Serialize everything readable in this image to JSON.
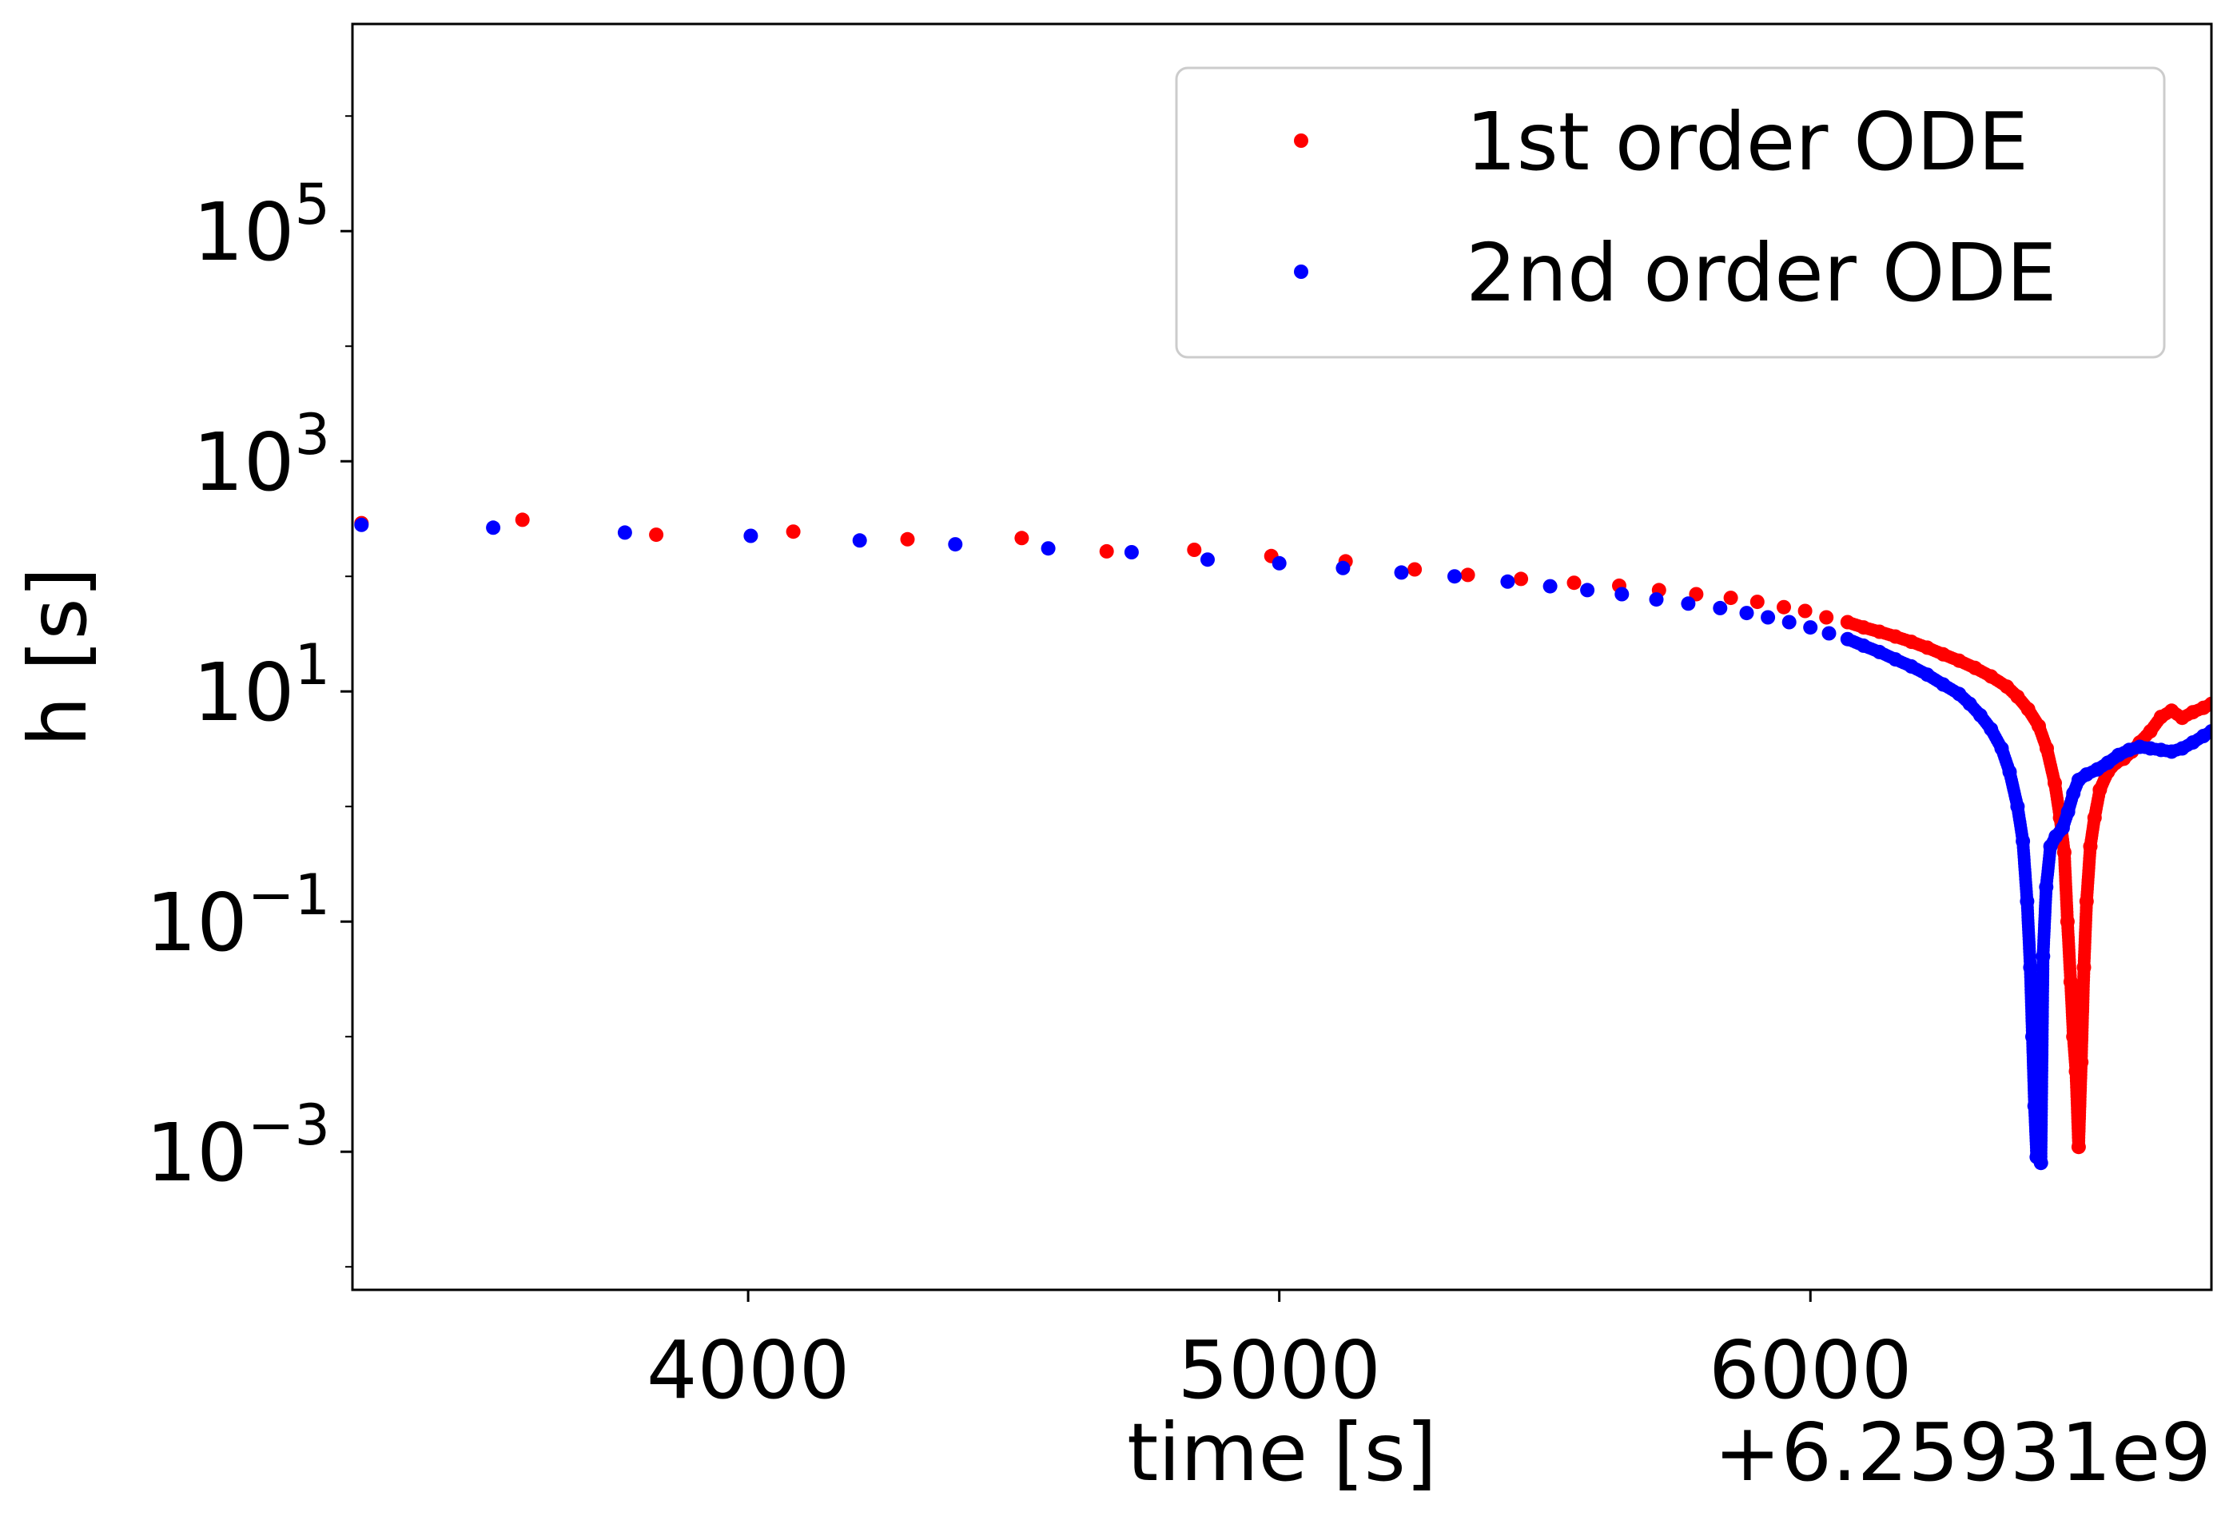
{
  "chart_data": {
    "type": "scatter",
    "title": "",
    "xlabel": "time [s]",
    "ylabel": "h [s]",
    "x_offset_label": "+6.25931e9",
    "x_offset": 6259310000,
    "xlim": [
      3255,
      6755
    ],
    "ylim_log10": [
      -4.2,
      6.8
    ],
    "y_scale": "log",
    "grid": false,
    "legend_position": "top-right",
    "x_ticks": [
      {
        "value": 4000,
        "label": "4000"
      },
      {
        "value": 5000,
        "label": "5000"
      },
      {
        "value": 6000,
        "label": "6000"
      }
    ],
    "y_ticks": [
      {
        "log10": -3,
        "base": "10",
        "exp": "−3"
      },
      {
        "log10": -1,
        "base": "10",
        "exp": "−1"
      },
      {
        "log10": 1,
        "base": "10",
        "exp": "1"
      },
      {
        "log10": 3,
        "base": "10",
        "exp": "3"
      },
      {
        "log10": 5,
        "base": "10",
        "exp": "5"
      }
    ],
    "series": [
      {
        "name": "1st order ODE",
        "color": "#ff0000",
        "points": [
          [
            3272,
            290
          ],
          [
            3575,
            310
          ],
          [
            3827,
            230
          ],
          [
            4085,
            245
          ],
          [
            4300,
            210
          ],
          [
            4515,
            215
          ],
          [
            4675,
            165
          ],
          [
            4840,
            170
          ],
          [
            4985,
            150
          ],
          [
            5125,
            135
          ],
          [
            5255,
            115
          ],
          [
            5355,
            103
          ],
          [
            5455,
            95
          ],
          [
            5555,
            88
          ],
          [
            5640,
            83
          ],
          [
            5715,
            76
          ],
          [
            5785,
            70
          ],
          [
            5850,
            65
          ],
          [
            5900,
            60
          ],
          [
            5950,
            54
          ],
          [
            5990,
            50
          ],
          [
            6030,
            44
          ],
          [
            6070,
            40
          ],
          [
            6100,
            36
          ],
          [
            6130,
            33
          ],
          [
            6160,
            30
          ],
          [
            6190,
            27
          ],
          [
            6220,
            24
          ],
          [
            6250,
            21
          ],
          [
            6280,
            18.5
          ],
          [
            6310,
            16
          ],
          [
            6340,
            13.5
          ],
          [
            6370,
            11
          ],
          [
            6390,
            9
          ],
          [
            6410,
            7
          ],
          [
            6430,
            5
          ],
          [
            6445,
            3.2
          ],
          [
            6460,
            1.6
          ],
          [
            6470,
            0.8
          ],
          [
            6478,
            0.4
          ],
          [
            6484,
            0.1
          ],
          [
            6490,
            0.03
          ],
          [
            6495,
            0.01
          ],
          [
            6500,
            0.005
          ],
          [
            6505,
            0.0011
          ],
          [
            6510,
            0.006
          ],
          [
            6515,
            0.04
          ],
          [
            6520,
            0.15
          ],
          [
            6527,
            0.45
          ],
          [
            6535,
            0.8
          ],
          [
            6545,
            1.4
          ],
          [
            6560,
            2.0
          ],
          [
            6575,
            2.4
          ],
          [
            6590,
            2.6
          ],
          [
            6605,
            3.0
          ],
          [
            6620,
            3.6
          ],
          [
            6640,
            4.5
          ],
          [
            6660,
            6.0
          ],
          [
            6680,
            6.8
          ],
          [
            6700,
            5.9
          ],
          [
            6720,
            6.6
          ],
          [
            6740,
            7.2
          ],
          [
            6755,
            7.8
          ]
        ]
      },
      {
        "name": "2nd order ODE",
        "color": "#0000ff",
        "points": [
          [
            3272,
            280
          ],
          [
            3520,
            265
          ],
          [
            3768,
            240
          ],
          [
            4005,
            225
          ],
          [
            4210,
            205
          ],
          [
            4390,
            190
          ],
          [
            4565,
            175
          ],
          [
            4722,
            162
          ],
          [
            4865,
            140
          ],
          [
            5000,
            130
          ],
          [
            5120,
            118
          ],
          [
            5230,
            108
          ],
          [
            5330,
            100
          ],
          [
            5430,
            90
          ],
          [
            5510,
            82
          ],
          [
            5580,
            76
          ],
          [
            5645,
            70
          ],
          [
            5710,
            63
          ],
          [
            5770,
            58
          ],
          [
            5830,
            53
          ],
          [
            5880,
            48
          ],
          [
            5920,
            44
          ],
          [
            5960,
            40
          ],
          [
            6000,
            36
          ],
          [
            6035,
            32
          ],
          [
            6070,
            28.5
          ],
          [
            6100,
            25
          ],
          [
            6130,
            22
          ],
          [
            6160,
            19
          ],
          [
            6190,
            16.5
          ],
          [
            6220,
            14
          ],
          [
            6250,
            11.5
          ],
          [
            6280,
            9.5
          ],
          [
            6300,
            7.8
          ],
          [
            6320,
            6.2
          ],
          [
            6340,
            4.7
          ],
          [
            6360,
            3.2
          ],
          [
            6375,
            2.0
          ],
          [
            6390,
            1.0
          ],
          [
            6400,
            0.5
          ],
          [
            6408,
            0.15
          ],
          [
            6414,
            0.04
          ],
          [
            6418,
            0.01
          ],
          [
            6422,
            0.0025
          ],
          [
            6426,
            0.0009
          ],
          [
            6430,
            0.006
          ],
          [
            6434,
            0.0008
          ],
          [
            6438,
            0.05
          ],
          [
            6444,
            0.2
          ],
          [
            6452,
            0.45
          ],
          [
            6462,
            0.55
          ],
          [
            6475,
            0.65
          ],
          [
            6485,
            0.9
          ],
          [
            6495,
            1.3
          ],
          [
            6505,
            1.7
          ],
          [
            6520,
            1.9
          ],
          [
            6540,
            2.1
          ],
          [
            6560,
            2.4
          ],
          [
            6580,
            2.8
          ],
          [
            6600,
            3.1
          ],
          [
            6620,
            3.3
          ],
          [
            6640,
            3.2
          ],
          [
            6660,
            3.1
          ],
          [
            6680,
            3.0
          ],
          [
            6700,
            3.2
          ],
          [
            6720,
            3.6
          ],
          [
            6740,
            4.1
          ],
          [
            6755,
            4.5
          ]
        ]
      }
    ]
  }
}
